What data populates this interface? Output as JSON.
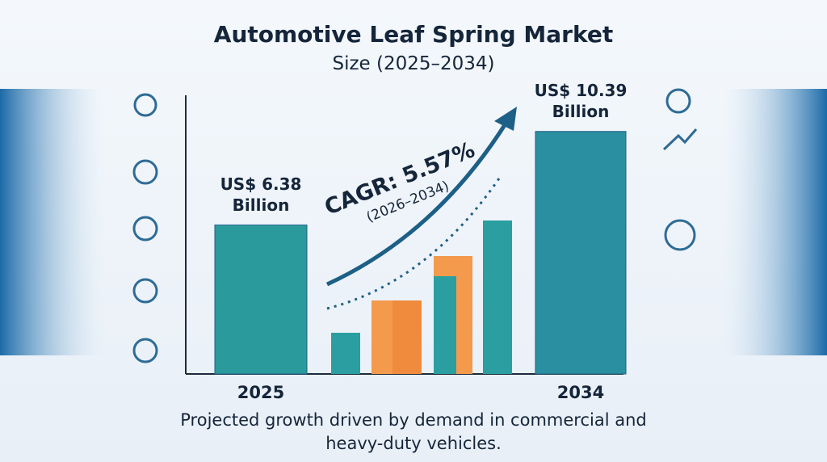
{
  "chart_data": {
    "type": "bar",
    "title": "Automotive Leaf Spring Market",
    "subtitle": "Size (2025–2034)",
    "categories": [
      "2025",
      "2034"
    ],
    "values": [
      6.38,
      10.39
    ],
    "value_labels": [
      "US$ 6.38 Billion",
      "US$ 10.39 Billion"
    ],
    "colors": [
      "#2a9a9c",
      "#2a8fa0"
    ],
    "annotations": [
      "CAGR: 5.57%",
      "(2026–2034)"
    ],
    "footnote": "Projected growth driven by demand in commercial and heavy-duty vehicles."
  }
}
